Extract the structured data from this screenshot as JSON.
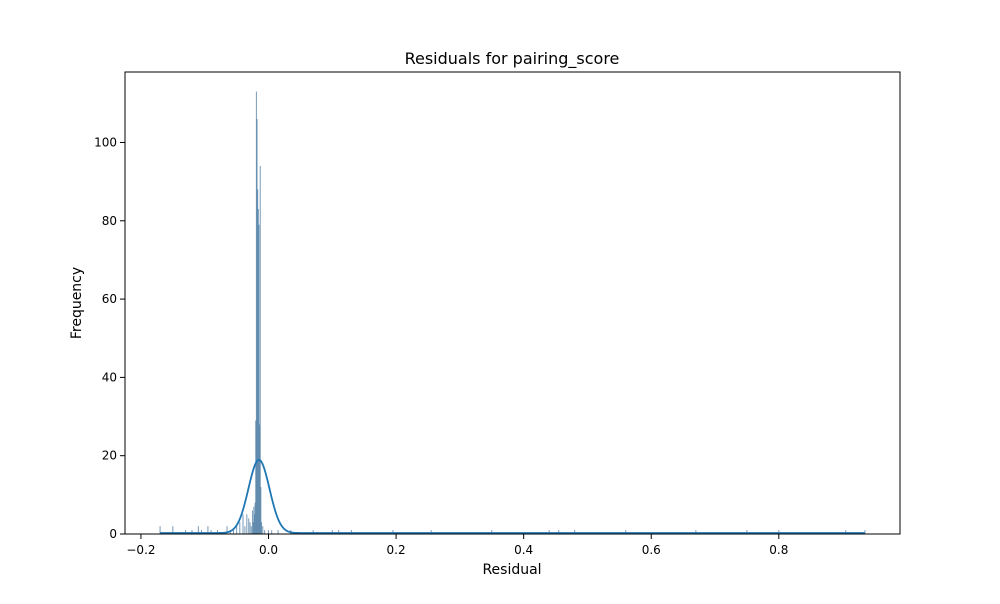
{
  "chart_data": {
    "type": "bar",
    "title": "Residuals for pairing_score",
    "xlabel": "Residual",
    "ylabel": "Frequency",
    "xlim": [
      -0.225,
      0.99
    ],
    "ylim": [
      0,
      118
    ],
    "x_ticks": [
      -0.2,
      0.0,
      0.2,
      0.4,
      0.6,
      0.8
    ],
    "x_tick_labels": [
      "−0.2",
      "0.0",
      "0.2",
      "0.4",
      "0.6",
      "0.8"
    ],
    "y_ticks": [
      0,
      20,
      40,
      60,
      80,
      100
    ],
    "y_tick_labels": [
      "0",
      "20",
      "40",
      "60",
      "80",
      "100"
    ],
    "grid": false,
    "histogram_color": "#4878a0",
    "kde_color": "#1f77b4",
    "bin_width": 0.001,
    "histogram_bins": [
      {
        "x": -0.17,
        "count": 2
      },
      {
        "x": -0.15,
        "count": 2
      },
      {
        "x": -0.13,
        "count": 1
      },
      {
        "x": -0.12,
        "count": 1
      },
      {
        "x": -0.11,
        "count": 2
      },
      {
        "x": -0.105,
        "count": 1
      },
      {
        "x": -0.095,
        "count": 2
      },
      {
        "x": -0.09,
        "count": 1
      },
      {
        "x": -0.08,
        "count": 1
      },
      {
        "x": -0.065,
        "count": 2
      },
      {
        "x": -0.06,
        "count": 1
      },
      {
        "x": -0.055,
        "count": 1
      },
      {
        "x": -0.05,
        "count": 2
      },
      {
        "x": -0.045,
        "count": 3
      },
      {
        "x": -0.04,
        "count": 5
      },
      {
        "x": -0.037,
        "count": 2
      },
      {
        "x": -0.034,
        "count": 5
      },
      {
        "x": -0.031,
        "count": 4
      },
      {
        "x": -0.029,
        "count": 3
      },
      {
        "x": -0.027,
        "count": 2
      },
      {
        "x": -0.025,
        "count": 6
      },
      {
        "x": -0.024,
        "count": 3
      },
      {
        "x": -0.023,
        "count": 7
      },
      {
        "x": -0.022,
        "count": 5
      },
      {
        "x": -0.021,
        "count": 8
      },
      {
        "x": -0.02,
        "count": 29
      },
      {
        "x": -0.019,
        "count": 113
      },
      {
        "x": -0.018,
        "count": 106
      },
      {
        "x": -0.017,
        "count": 88
      },
      {
        "x": -0.016,
        "count": 83
      },
      {
        "x": -0.015,
        "count": 79
      },
      {
        "x": -0.014,
        "count": 28
      },
      {
        "x": -0.013,
        "count": 94
      },
      {
        "x": -0.012,
        "count": 12
      },
      {
        "x": -0.011,
        "count": 3
      },
      {
        "x": -0.009,
        "count": 2
      },
      {
        "x": -0.006,
        "count": 1
      },
      {
        "x": 0.0,
        "count": 1
      },
      {
        "x": 0.005,
        "count": 1
      },
      {
        "x": 0.015,
        "count": 1
      },
      {
        "x": 0.035,
        "count": 1
      },
      {
        "x": 0.07,
        "count": 1
      },
      {
        "x": 0.1,
        "count": 1
      },
      {
        "x": 0.11,
        "count": 1
      },
      {
        "x": 0.13,
        "count": 1
      },
      {
        "x": 0.195,
        "count": 1
      },
      {
        "x": 0.255,
        "count": 1
      },
      {
        "x": 0.35,
        "count": 1
      },
      {
        "x": 0.44,
        "count": 1
      },
      {
        "x": 0.455,
        "count": 1
      },
      {
        "x": 0.48,
        "count": 1
      },
      {
        "x": 0.56,
        "count": 1
      },
      {
        "x": 0.67,
        "count": 1
      },
      {
        "x": 0.75,
        "count": 1
      },
      {
        "x": 0.8,
        "count": 1
      },
      {
        "x": 0.905,
        "count": 1
      },
      {
        "x": 0.935,
        "count": 1
      }
    ],
    "kde": {
      "x_range": [
        -0.17,
        0.935
      ],
      "peak_x": -0.015,
      "peak_y": 18.7,
      "sigma": 0.0165,
      "baseline": 0.25
    }
  }
}
